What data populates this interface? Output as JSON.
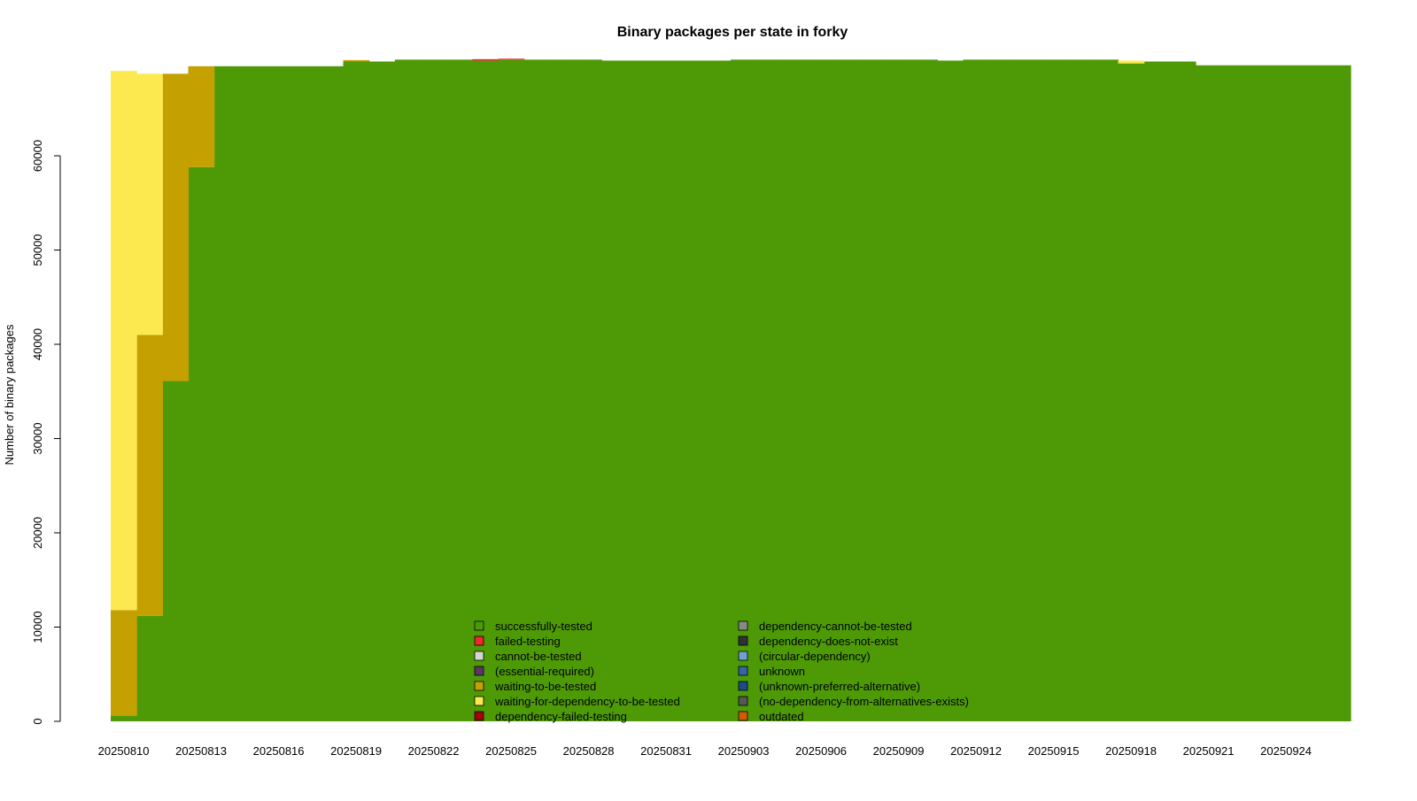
{
  "chart_data": {
    "type": "area",
    "stacking": "stacked-step",
    "title": "Binary packages per state in forky",
    "xlabel": "",
    "ylabel": "Number of binary packages",
    "ylim": [
      0,
      69500
    ],
    "yticks": [
      0,
      10000,
      20000,
      30000,
      40000,
      50000,
      60000
    ],
    "xtick_labels": [
      "20250810",
      "20250813",
      "20250816",
      "20250819",
      "20250822",
      "20250825",
      "20250828",
      "20250831",
      "20250903",
      "20250906",
      "20250909",
      "20250912",
      "20250915",
      "20250918",
      "20250921",
      "20250924"
    ],
    "x": [
      "20250810",
      "20250811",
      "20250812",
      "20250813",
      "20250814",
      "20250815",
      "20250816",
      "20250817",
      "20250818",
      "20250819",
      "20250820",
      "20250821",
      "20250822",
      "20250823",
      "20250824",
      "20250825",
      "20250826",
      "20250827",
      "20250828",
      "20250829",
      "20250830",
      "20250831",
      "20250901",
      "20250902",
      "20250903",
      "20250904",
      "20250905",
      "20250906",
      "20250907",
      "20250908",
      "20250909",
      "20250910",
      "20250911",
      "20250912",
      "20250913",
      "20250914",
      "20250915",
      "20250916",
      "20250917",
      "20250918",
      "20250919",
      "20250920",
      "20250921",
      "20250922",
      "20250923",
      "20250924",
      "20250925",
      "20250926"
    ],
    "series": [
      {
        "name": "successfully-tested",
        "color": "#4e9a06",
        "values": [
          600,
          11200,
          36100,
          58800,
          69500,
          69500,
          69500,
          69500,
          69500,
          70000,
          70000,
          70200,
          70200,
          70200,
          70100,
          70200,
          70200,
          70200,
          70200,
          70100,
          70100,
          70100,
          70100,
          70100,
          70200,
          70200,
          70200,
          70200,
          70200,
          70200,
          70200,
          70200,
          70100,
          70200,
          70200,
          70200,
          70200,
          70200,
          70200,
          69800,
          70000,
          70000,
          69600,
          69600,
          69600,
          69600,
          69600,
          69600
        ]
      },
      {
        "name": "failed-testing",
        "color": "#ef2929",
        "values": [
          0,
          0,
          0,
          0,
          0,
          0,
          0,
          0,
          0,
          0,
          0,
          0,
          0,
          0,
          150,
          100,
          0,
          0,
          0,
          0,
          0,
          0,
          0,
          0,
          0,
          0,
          0,
          0,
          0,
          0,
          0,
          0,
          0,
          0,
          0,
          0,
          0,
          0,
          0,
          0,
          0,
          0,
          0,
          0,
          0,
          0,
          0,
          0
        ]
      },
      {
        "name": "cannot-be-tested",
        "color": "#d3d7cf",
        "values": [
          0,
          0,
          0,
          0,
          0,
          0,
          0,
          0,
          0,
          0,
          0,
          0,
          0,
          0,
          0,
          0,
          0,
          0,
          0,
          0,
          0,
          0,
          0,
          0,
          0,
          0,
          0,
          0,
          0,
          0,
          0,
          0,
          0,
          0,
          0,
          0,
          0,
          0,
          0,
          0,
          0,
          0,
          0,
          0,
          0,
          0,
          0,
          0
        ]
      },
      {
        "name": "(essential-required)",
        "color": "#5c3566",
        "values": [
          0,
          0,
          0,
          0,
          0,
          0,
          0,
          0,
          0,
          0,
          0,
          0,
          0,
          0,
          0,
          0,
          0,
          0,
          0,
          0,
          0,
          0,
          0,
          0,
          0,
          0,
          0,
          0,
          0,
          0,
          0,
          0,
          0,
          0,
          0,
          0,
          0,
          0,
          0,
          0,
          0,
          0,
          0,
          0,
          0,
          0,
          0,
          0
        ]
      },
      {
        "name": "waiting-to-be-tested",
        "color": "#c4a000",
        "values": [
          11200,
          29800,
          32600,
          10700,
          0,
          0,
          0,
          0,
          0,
          150,
          0,
          0,
          0,
          0,
          0,
          0,
          0,
          0,
          0,
          0,
          0,
          0,
          0,
          0,
          0,
          0,
          0,
          0,
          0,
          0,
          0,
          0,
          0,
          0,
          0,
          0,
          0,
          0,
          0,
          0,
          0,
          0,
          0,
          0,
          0,
          0,
          0,
          0
        ]
      },
      {
        "name": "waiting-for-dependency-to-be-tested",
        "color": "#fce94f",
        "values": [
          57200,
          27700,
          0,
          0,
          0,
          0,
          0,
          0,
          0,
          0,
          0,
          0,
          0,
          0,
          0,
          0,
          0,
          0,
          0,
          0,
          0,
          0,
          0,
          0,
          0,
          0,
          0,
          0,
          0,
          0,
          0,
          0,
          0,
          0,
          0,
          0,
          0,
          0,
          0,
          300,
          0,
          0,
          0,
          0,
          0,
          0,
          0,
          0
        ]
      },
      {
        "name": "dependency-failed-testing",
        "color": "#a40000",
        "values": [
          0,
          0,
          0,
          0,
          0,
          0,
          0,
          0,
          0,
          0,
          0,
          0,
          0,
          0,
          0,
          0,
          0,
          0,
          0,
          0,
          0,
          0,
          0,
          0,
          0,
          0,
          0,
          0,
          0,
          0,
          0,
          0,
          0,
          0,
          0,
          0,
          0,
          0,
          0,
          0,
          0,
          0,
          0,
          0,
          0,
          0,
          0,
          0
        ]
      },
      {
        "name": "dependency-cannot-be-tested",
        "color": "#888a85",
        "values": [
          0,
          0,
          0,
          0,
          0,
          0,
          0,
          0,
          0,
          0,
          0,
          0,
          0,
          0,
          0,
          0,
          0,
          0,
          0,
          0,
          0,
          0,
          0,
          0,
          0,
          0,
          0,
          0,
          0,
          0,
          0,
          0,
          0,
          0,
          0,
          0,
          0,
          0,
          0,
          0,
          0,
          0,
          0,
          0,
          0,
          0,
          0,
          0
        ]
      },
      {
        "name": "dependency-does-not-exist",
        "color": "#2e3436",
        "values": [
          0,
          0,
          0,
          0,
          0,
          0,
          0,
          0,
          0,
          0,
          0,
          0,
          0,
          0,
          0,
          0,
          0,
          0,
          0,
          0,
          0,
          0,
          0,
          0,
          0,
          0,
          0,
          0,
          0,
          0,
          0,
          0,
          0,
          0,
          0,
          0,
          0,
          0,
          0,
          0,
          0,
          0,
          0,
          0,
          0,
          0,
          0,
          0
        ]
      },
      {
        "name": "(circular-dependency)",
        "color": "#729fcf",
        "values": [
          0,
          0,
          0,
          0,
          0,
          0,
          0,
          0,
          0,
          0,
          0,
          0,
          0,
          0,
          0,
          0,
          0,
          0,
          0,
          0,
          0,
          0,
          0,
          0,
          0,
          0,
          0,
          0,
          0,
          0,
          0,
          0,
          0,
          0,
          0,
          0,
          0,
          0,
          0,
          0,
          0,
          0,
          0,
          0,
          0,
          0,
          0,
          0
        ]
      },
      {
        "name": "unknown",
        "color": "#3465a4",
        "values": [
          0,
          0,
          0,
          0,
          0,
          0,
          0,
          0,
          0,
          0,
          0,
          0,
          0,
          0,
          0,
          0,
          0,
          0,
          0,
          0,
          0,
          0,
          0,
          0,
          0,
          0,
          0,
          0,
          0,
          0,
          0,
          0,
          0,
          0,
          0,
          0,
          0,
          0,
          0,
          0,
          0,
          0,
          0,
          0,
          0,
          0,
          0,
          0
        ]
      },
      {
        "name": "(unknown-preferred-alternative)",
        "color": "#204a87",
        "values": [
          0,
          0,
          0,
          0,
          0,
          0,
          0,
          0,
          0,
          0,
          0,
          0,
          0,
          0,
          0,
          0,
          0,
          0,
          0,
          0,
          0,
          0,
          0,
          0,
          0,
          0,
          0,
          0,
          0,
          0,
          0,
          0,
          0,
          0,
          0,
          0,
          0,
          0,
          0,
          0,
          0,
          0,
          0,
          0,
          0,
          0,
          0,
          0
        ]
      },
      {
        "name": "(no-dependency-from-alternatives-exists)",
        "color": "#555753",
        "values": [
          0,
          0,
          0,
          0,
          0,
          0,
          0,
          0,
          0,
          0,
          0,
          0,
          0,
          0,
          0,
          0,
          0,
          0,
          0,
          0,
          0,
          0,
          0,
          0,
          0,
          0,
          0,
          0,
          0,
          0,
          0,
          0,
          0,
          0,
          0,
          0,
          0,
          0,
          0,
          0,
          0,
          0,
          0,
          0,
          0,
          0,
          0,
          0
        ]
      },
      {
        "name": "outdated",
        "color": "#ce5c00",
        "values": [
          0,
          0,
          0,
          0,
          0,
          0,
          0,
          0,
          0,
          0,
          0,
          0,
          0,
          0,
          0,
          0,
          0,
          0,
          0,
          0,
          0,
          0,
          0,
          0,
          0,
          0,
          0,
          0,
          0,
          0,
          0,
          0,
          0,
          0,
          0,
          0,
          0,
          0,
          0,
          0,
          0,
          0,
          0,
          0,
          0,
          0,
          0,
          0
        ]
      }
    ],
    "legend_position": "bottom-center",
    "grid": false
  }
}
